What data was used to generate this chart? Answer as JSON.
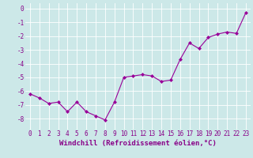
{
  "x": [
    0,
    1,
    2,
    3,
    4,
    5,
    6,
    7,
    8,
    9,
    10,
    11,
    12,
    13,
    14,
    15,
    16,
    17,
    18,
    19,
    20,
    21,
    22,
    23
  ],
  "y": [
    -6.2,
    -6.5,
    -6.9,
    -6.8,
    -7.5,
    -6.8,
    -7.5,
    -7.8,
    -8.1,
    -6.8,
    -5.0,
    -4.9,
    -4.8,
    -4.9,
    -5.3,
    -5.2,
    -3.7,
    -2.5,
    -2.9,
    -2.1,
    -1.85,
    -1.7,
    -1.8,
    -0.3
  ],
  "line_color": "#990099",
  "marker": "D",
  "marker_size": 2,
  "bg_color": "#cce8e8",
  "grid_color": "#ffffff",
  "xlabel": "Windchill (Refroidissement éolien,°C)",
  "ylim": [
    -8.8,
    0.4
  ],
  "xlim": [
    -0.5,
    23.5
  ],
  "yticks": [
    0,
    -1,
    -2,
    -3,
    -4,
    -5,
    -6,
    -7,
    -8
  ],
  "xticks": [
    0,
    1,
    2,
    3,
    4,
    5,
    6,
    7,
    8,
    9,
    10,
    11,
    12,
    13,
    14,
    15,
    16,
    17,
    18,
    19,
    20,
    21,
    22,
    23
  ],
  "tick_label_size": 5.5,
  "xlabel_size": 6.5,
  "label_color": "#880088",
  "tick_color": "#880088"
}
